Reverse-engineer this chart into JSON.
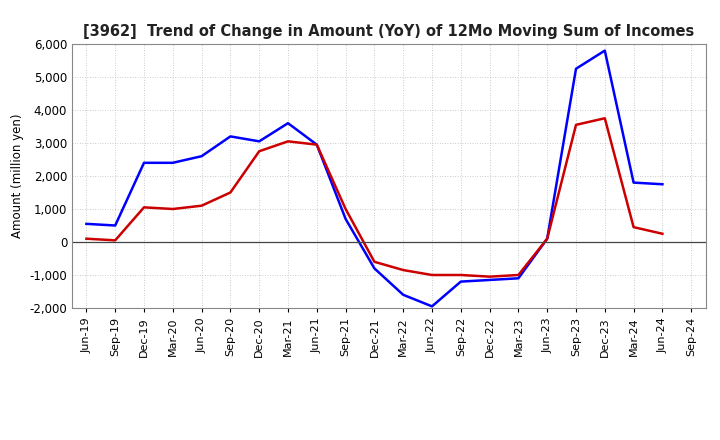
{
  "title": "[3962]  Trend of Change in Amount (YoY) of 12Mo Moving Sum of Incomes",
  "ylabel": "Amount (million yen)",
  "x_labels": [
    "Jun-19",
    "Sep-19",
    "Dec-19",
    "Mar-20",
    "Jun-20",
    "Sep-20",
    "Dec-20",
    "Mar-21",
    "Jun-21",
    "Sep-21",
    "Dec-21",
    "Mar-22",
    "Jun-22",
    "Sep-22",
    "Dec-22",
    "Mar-23",
    "Jun-23",
    "Sep-23",
    "Dec-23",
    "Mar-24",
    "Jun-24",
    "Sep-24"
  ],
  "ordinary_income": [
    550,
    500,
    2400,
    2400,
    2600,
    3200,
    3050,
    3600,
    2950,
    700,
    -800,
    -1600,
    -1950,
    -1200,
    -1150,
    -1100,
    100,
    5250,
    5800,
    1800,
    1750,
    null
  ],
  "net_income": [
    100,
    50,
    1050,
    1000,
    1100,
    1500,
    2750,
    3050,
    2950,
    1000,
    -600,
    -850,
    -1000,
    -1000,
    -1050,
    -1000,
    100,
    3550,
    3750,
    450,
    250,
    null
  ],
  "ordinary_color": "#0000ff",
  "net_color": "#cc0000",
  "ylim": [
    -2000,
    6000
  ],
  "yticks": [
    -2000,
    -1000,
    0,
    1000,
    2000,
    3000,
    4000,
    5000,
    6000
  ],
  "background_color": "#ffffff",
  "grid_color": "#bbbbbb"
}
